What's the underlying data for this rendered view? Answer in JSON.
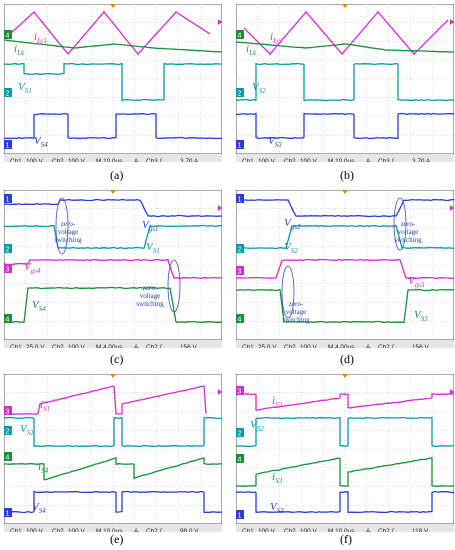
{
  "chart_data": [
    {
      "type": "line",
      "panel": "a",
      "caption": "(a)",
      "trace_labels": [
        {
          "id": "iLr1",
          "base": "i",
          "sub": "Lr1",
          "color": "#d42bd4"
        },
        {
          "id": "iLk",
          "base": "i",
          "sub": "Lk",
          "color": "#1a8f3a"
        },
        {
          "id": "VS1",
          "base": "V",
          "sub": "S1",
          "color": "#0a9aa8"
        },
        {
          "id": "VS4",
          "base": "V",
          "sub": "S4",
          "color": "#2a3fd0"
        }
      ],
      "channel_markers": [
        "4",
        "2",
        "1"
      ],
      "readout_row1": [
        "Ch1",
        "100 V",
        "Ch2",
        "100 V",
        "M 10.0µs",
        "A",
        "Ch3",
        "∫",
        "3.70 A"
      ],
      "readout_row2": [
        "Ch3",
        "10.0 A Ω",
        "Ch4",
        "10.0 A Ω"
      ],
      "annotations": []
    },
    {
      "type": "line",
      "panel": "b",
      "caption": "(b)",
      "trace_labels": [
        {
          "id": "iLr2",
          "base": "i",
          "sub": "Lr2",
          "color": "#d42bd4"
        },
        {
          "id": "iLk",
          "base": "i",
          "sub": "Lk",
          "color": "#1a8f3a"
        },
        {
          "id": "VS2",
          "base": "V",
          "sub": "S2",
          "color": "#0a9aa8"
        },
        {
          "id": "VS3",
          "base": "V",
          "sub": "S3",
          "color": "#2a3fd0"
        }
      ],
      "channel_markers": [
        "4",
        "2",
        "1"
      ],
      "readout_row1": [
        "Ch1",
        "100 V",
        "Ch2",
        "100 V",
        "M 10.0µs",
        "A",
        "Ch3",
        "∫",
        "3.70 A"
      ],
      "readout_row2": [
        "Ch3",
        "10.0 A Ω",
        "Ch4",
        "10.0 A Ω"
      ],
      "annotations": []
    },
    {
      "type": "line",
      "panel": "c",
      "caption": "(c)",
      "trace_labels": [
        {
          "id": "Vgs1",
          "base": "V",
          "sub": "gs1",
          "color": "#2a3fd0"
        },
        {
          "id": "VS1",
          "base": "V",
          "sub": "S1",
          "color": "#0a9aa8"
        },
        {
          "id": "Vgs4",
          "base": "V",
          "sub": "gs4",
          "color": "#d42bd4"
        },
        {
          "id": "VS4",
          "base": "V",
          "sub": "S4",
          "color": "#1a8f3a"
        }
      ],
      "channel_markers": [
        "1",
        "2",
        "3",
        "4"
      ],
      "readout_row1": [
        "Ch1",
        "25.0 V",
        "Ch2",
        "100 V",
        "M 4.00µs",
        "A",
        "Ch2",
        "∫",
        "156 V"
      ],
      "readout_row2": [
        "Ch3",
        "25.0 V",
        "Ch4",
        "100 V"
      ],
      "annotations": [
        "zero-voltage switching",
        "zero-voltage switching"
      ]
    },
    {
      "type": "line",
      "panel": "d",
      "caption": "(d)",
      "trace_labels": [
        {
          "id": "Vgs2",
          "base": "V",
          "sub": "gs2",
          "color": "#2a3fd0"
        },
        {
          "id": "VS2",
          "base": "V",
          "sub": "S2",
          "color": "#0a9aa8"
        },
        {
          "id": "Vgs3",
          "base": "V",
          "sub": "gs3",
          "color": "#d42bd4"
        },
        {
          "id": "VS3",
          "base": "V",
          "sub": "S3",
          "color": "#1a8f3a"
        }
      ],
      "channel_markers": [
        "1",
        "2",
        "3",
        "4"
      ],
      "readout_row1": [
        "Ch1",
        "25.0 V",
        "Ch2",
        "100 V",
        "M 4.00µs",
        "A",
        "Ch2",
        "∫",
        "156 V"
      ],
      "readout_row2": [
        "Ch3",
        "25.0 V",
        "Ch4",
        "100 V"
      ],
      "annotations": [
        "zero-voltage switching",
        "zero-voltage switching"
      ]
    },
    {
      "type": "line",
      "panel": "e",
      "caption": "(e)",
      "trace_labels": [
        {
          "id": "iS1",
          "base": "i",
          "sub": "S1",
          "color": "#d42bd4"
        },
        {
          "id": "VS1",
          "base": "V",
          "sub": "S1",
          "color": "#0a9aa8"
        },
        {
          "id": "iS4",
          "base": "i",
          "sub": "S4",
          "color": "#1a8f3a"
        },
        {
          "id": "VS4",
          "base": "V",
          "sub": "S4",
          "color": "#2a3fd0"
        }
      ],
      "channel_markers": [
        "3",
        "2",
        "4",
        "1"
      ],
      "readout_row1": [
        "Ch1",
        "100 V",
        "Ch2",
        "100 V",
        "M 10.0µs",
        "A",
        "Ch2",
        "∫",
        "98.0 V"
      ],
      "readout_row2": [
        "Ch3",
        "20.0 A Ω",
        "Ch4",
        "20.0 A Ω"
      ],
      "annotations": []
    },
    {
      "type": "line",
      "panel": "f",
      "caption": "(f)",
      "trace_labels": [
        {
          "id": "iS2",
          "base": "i",
          "sub": "S2",
          "color": "#d42bd4"
        },
        {
          "id": "VS2",
          "base": "V",
          "sub": "S2",
          "color": "#0a9aa8"
        },
        {
          "id": "iS3",
          "base": "i",
          "sub": "S3",
          "color": "#1a8f3a"
        },
        {
          "id": "VS3",
          "base": "V",
          "sub": "S3",
          "color": "#2a3fd0"
        }
      ],
      "channel_markers": [
        "3",
        "2",
        "4",
        "1"
      ],
      "readout_row1": [
        "Ch1",
        "100 V",
        "Ch2",
        "100 V",
        "M 10.0µs",
        "A",
        "Ch2",
        "∫",
        "118 V"
      ],
      "readout_row2": [
        "Ch3",
        "20.0 A Ω",
        "Ch4",
        "20.0 A Ω"
      ],
      "annotations": []
    }
  ],
  "colors": {
    "ch1": "#2a3fd0",
    "ch2": "#0a9aa8",
    "ch3": "#d42bd4",
    "ch4": "#1a8f3a",
    "grid": "#b8b8b8",
    "screen_bg": "#ffffff",
    "readout_bg": "#e6e6e6"
  }
}
